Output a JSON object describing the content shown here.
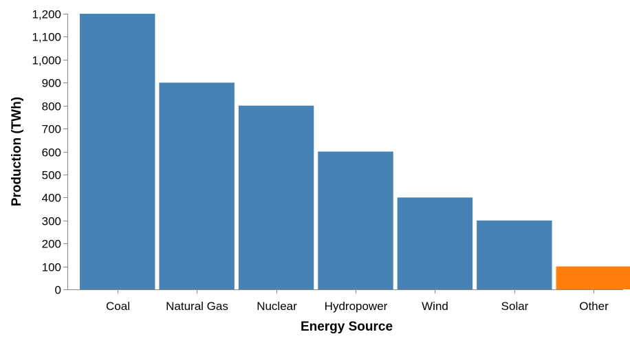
{
  "chart_data": {
    "type": "bar",
    "title": "",
    "xlabel": "Energy Source",
    "ylabel": "Production (TWh)",
    "categories": [
      "Coal",
      "Natural Gas",
      "Nuclear",
      "Hydropower",
      "Wind",
      "Solar",
      "Other"
    ],
    "values": [
      1200,
      900,
      800,
      600,
      400,
      300,
      100
    ],
    "bar_colors": [
      "#4682b4",
      "#4682b4",
      "#4682b4",
      "#4682b4",
      "#4682b4",
      "#4682b4",
      "#ff7f0e"
    ],
    "ylim": [
      0,
      1200
    ],
    "yticks": [
      0,
      100,
      200,
      300,
      400,
      500,
      600,
      700,
      800,
      900,
      1000,
      1100,
      1200
    ],
    "ytick_labels": [
      "0",
      "100",
      "200",
      "300",
      "400",
      "500",
      "600",
      "700",
      "800",
      "900",
      "1,000",
      "1,100",
      "1,200"
    ],
    "grid": false,
    "legend": "none"
  }
}
